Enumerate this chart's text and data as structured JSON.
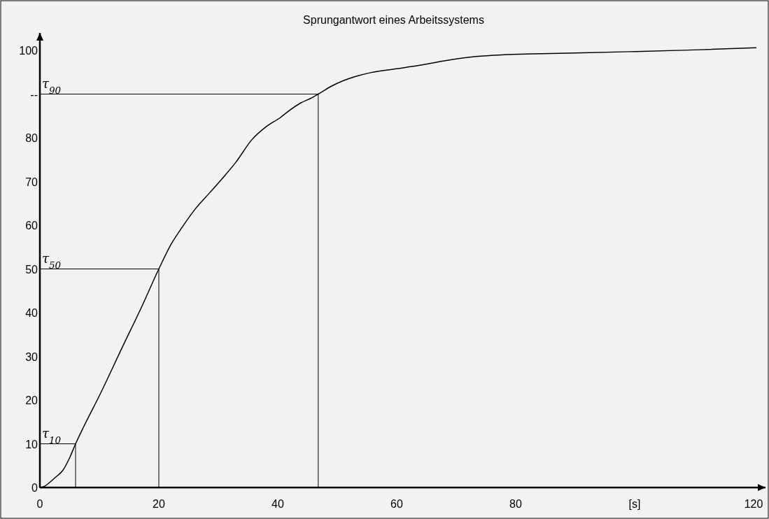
{
  "chart_data": {
    "type": "line",
    "title": "Sprungantwort eines Arbeitssystems",
    "x": [
      0,
      0.8,
      1.5,
      2.5,
      3.9,
      5,
      6,
      7.4,
      10,
      14,
      17,
      20,
      22,
      23.9,
      26,
      28.6,
      31,
      33,
      35.6,
      38,
      40.4,
      42,
      43.9,
      45.5,
      46.8,
      49,
      50.9,
      53,
      55.6,
      60,
      63.9,
      68,
      73.3,
      78,
      82.7,
      90,
      99.2,
      110,
      120.4
    ],
    "series": [
      {
        "color": "#000000",
        "values": [
          0,
          0.3,
          1,
          2.2,
          4,
          6.8,
          10,
          14,
          21,
          32.5,
          41,
          50,
          55.5,
          59.5,
          63.5,
          67.5,
          71.2,
          74.5,
          79.5,
          82.5,
          84.6,
          86.3,
          88,
          89,
          90,
          91.8,
          93,
          94,
          94.9,
          95.8,
          96.6,
          97.6,
          98.6,
          99,
          99.2,
          99.4,
          99.7,
          100.1,
          100.6
        ]
      },
      {
        "color": "#000000",
        "x": [
          0,
          6,
          6
        ],
        "values": [
          10,
          10,
          0
        ]
      },
      {
        "color": "#000000",
        "x": [
          0,
          20,
          20
        ],
        "values": [
          50,
          50,
          0
        ]
      },
      {
        "color": "#000000",
        "x": [
          0,
          46.8,
          46.8
        ],
        "values": [
          90,
          90,
          0
        ]
      }
    ],
    "xlim": [
      0,
      122
    ],
    "ylim": [
      0,
      104
    ],
    "xticks": [
      0,
      20,
      40,
      60,
      80,
      {
        "value": 100,
        "label": "[s]"
      },
      120
    ],
    "yticks": [
      0,
      10,
      20,
      30,
      40,
      50,
      60,
      70,
      80,
      {
        "value": 90,
        "label": "--"
      },
      100
    ],
    "annotations": [
      {
        "text": "τ$_{10}$",
        "y": 10
      },
      {
        "text": "τ$_{50}$",
        "y": 50
      },
      {
        "text": "τ$_{90}$",
        "y": 90
      }
    ],
    "grid": false,
    "marker": "none",
    "line_style": "solid"
  }
}
